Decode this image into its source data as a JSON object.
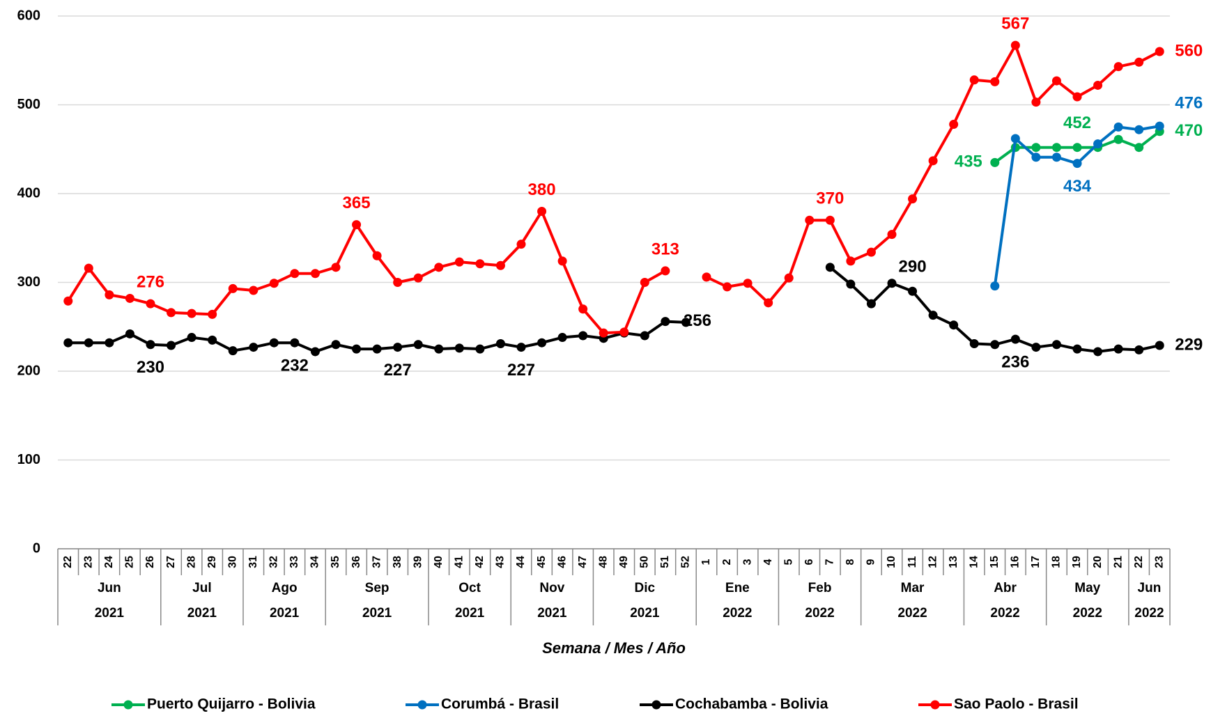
{
  "chart_data": {
    "type": "line",
    "x_label": "Semana  / Mes / Año",
    "categories": [
      "22",
      "23",
      "24",
      "25",
      "26",
      "27",
      "28",
      "29",
      "30",
      "31",
      "32",
      "33",
      "34",
      "35",
      "36",
      "37",
      "38",
      "39",
      "40",
      "41",
      "42",
      "43",
      "44",
      "45",
      "46",
      "47",
      "48",
      "49",
      "50",
      "51",
      "52",
      "1",
      "2",
      "3",
      "4",
      "5",
      "6",
      "7",
      "8",
      "9",
      "10",
      "11",
      "12",
      "13",
      "14",
      "15",
      "16",
      "17",
      "18",
      "19",
      "20",
      "21",
      "22",
      "23"
    ],
    "groups": [
      {
        "month": "Jun",
        "year": "2021",
        "weeks": 5
      },
      {
        "month": "Jul",
        "year": "2021",
        "weeks": 4
      },
      {
        "month": "Ago",
        "year": "2021",
        "weeks": 4
      },
      {
        "month": "Sep",
        "year": "2021",
        "weeks": 5
      },
      {
        "month": "Oct",
        "year": "2021",
        "weeks": 4
      },
      {
        "month": "Nov",
        "year": "2021",
        "weeks": 4
      },
      {
        "month": "Dic",
        "year": "2021",
        "weeks": 5
      },
      {
        "month": "Ene",
        "year": "2022",
        "weeks": 4
      },
      {
        "month": "Feb",
        "year": "2022",
        "weeks": 4
      },
      {
        "month": "Mar",
        "year": "2022",
        "weeks": 5
      },
      {
        "month": "Abr",
        "year": "2022",
        "weeks": 4
      },
      {
        "month": "May",
        "year": "2022",
        "weeks": 4
      },
      {
        "month": "Jun",
        "year": "2022",
        "weeks": 2
      }
    ],
    "ylim": [
      0,
      600
    ],
    "yticks": [
      0,
      100,
      200,
      300,
      400,
      500,
      600
    ],
    "grid": true,
    "legend": "bottom",
    "series": [
      {
        "name": "Puerto Quijarro - Bolivia",
        "color": "#00b050",
        "values": [
          null,
          null,
          null,
          null,
          null,
          null,
          null,
          null,
          null,
          null,
          null,
          null,
          null,
          null,
          null,
          null,
          null,
          null,
          null,
          null,
          null,
          null,
          null,
          null,
          null,
          null,
          null,
          null,
          null,
          null,
          null,
          null,
          null,
          null,
          null,
          null,
          null,
          null,
          null,
          null,
          null,
          null,
          null,
          null,
          null,
          435,
          452,
          452,
          452,
          452,
          452,
          461,
          452,
          470
        ],
        "value_labels": [
          null,
          null,
          null,
          null,
          null,
          null,
          null,
          null,
          null,
          null,
          null,
          null,
          null,
          null,
          null,
          null,
          null,
          null,
          null,
          null,
          null,
          null,
          null,
          null,
          null,
          null,
          null,
          null,
          null,
          null,
          null,
          null,
          null,
          null,
          null,
          null,
          null,
          null,
          null,
          null,
          null,
          null,
          null,
          null,
          null,
          "435",
          null,
          null,
          null,
          "452",
          null,
          null,
          null,
          "470"
        ]
      },
      {
        "name": "Corumbá - Brasil",
        "color": "#0070c0",
        "values": [
          null,
          null,
          null,
          null,
          null,
          null,
          null,
          null,
          null,
          null,
          null,
          null,
          null,
          null,
          null,
          null,
          null,
          null,
          null,
          null,
          null,
          null,
          null,
          null,
          null,
          null,
          null,
          null,
          null,
          null,
          null,
          null,
          null,
          null,
          null,
          null,
          null,
          null,
          null,
          null,
          null,
          null,
          null,
          null,
          null,
          296,
          462,
          441,
          441,
          434,
          456,
          475,
          472,
          476
        ],
        "value_labels": [
          null,
          null,
          null,
          null,
          null,
          null,
          null,
          null,
          null,
          null,
          null,
          null,
          null,
          null,
          null,
          null,
          null,
          null,
          null,
          null,
          null,
          null,
          null,
          null,
          null,
          null,
          null,
          null,
          null,
          null,
          null,
          null,
          null,
          null,
          null,
          null,
          null,
          null,
          null,
          null,
          null,
          null,
          null,
          null,
          null,
          null,
          null,
          null,
          null,
          "434",
          null,
          null,
          null,
          "476"
        ]
      },
      {
        "name": "Cochabamba - Bolivia",
        "color": "#000000",
        "values": [
          232,
          232,
          232,
          242,
          230,
          229,
          238,
          235,
          223,
          227,
          232,
          232,
          222,
          230,
          225,
          225,
          227,
          230,
          225,
          226,
          225,
          231,
          227,
          232,
          238,
          240,
          237,
          243,
          240,
          256,
          255,
          null,
          null,
          null,
          null,
          null,
          null,
          317,
          298,
          276,
          299,
          290,
          263,
          252,
          231,
          230,
          236,
          227,
          230,
          225,
          222,
          225,
          224,
          229
        ],
        "value_labels": [
          null,
          null,
          null,
          null,
          "230",
          null,
          null,
          null,
          null,
          null,
          null,
          "232",
          null,
          null,
          null,
          null,
          "227",
          null,
          null,
          null,
          null,
          null,
          "227",
          null,
          null,
          null,
          null,
          null,
          null,
          "256",
          null,
          null,
          null,
          null,
          null,
          null,
          null,
          null,
          null,
          null,
          null,
          "290",
          null,
          null,
          null,
          null,
          "236",
          null,
          null,
          null,
          null,
          null,
          null,
          "229"
        ]
      },
      {
        "name": "Sao Paolo - Brasil",
        "color": "#ff0000",
        "values": [
          279,
          316,
          286,
          282,
          276,
          266,
          265,
          264,
          293,
          291,
          299,
          310,
          310,
          317,
          365,
          330,
          300,
          305,
          317,
          323,
          321,
          319,
          343,
          380,
          324,
          270,
          243,
          244,
          300,
          313,
          null,
          306,
          295,
          299,
          277,
          305,
          370,
          370,
          324,
          334,
          354,
          394,
          437,
          478,
          528,
          526,
          567,
          503,
          527,
          509,
          522,
          543,
          548,
          560
        ],
        "value_labels": [
          null,
          null,
          null,
          null,
          "276",
          null,
          null,
          null,
          null,
          null,
          null,
          null,
          null,
          null,
          "365",
          null,
          null,
          null,
          null,
          null,
          null,
          null,
          null,
          "380",
          null,
          null,
          null,
          null,
          null,
          "313",
          null,
          null,
          null,
          null,
          null,
          null,
          null,
          "370",
          null,
          null,
          null,
          null,
          null,
          null,
          null,
          null,
          "567",
          null,
          null,
          null,
          null,
          null,
          null,
          "560"
        ]
      }
    ]
  }
}
